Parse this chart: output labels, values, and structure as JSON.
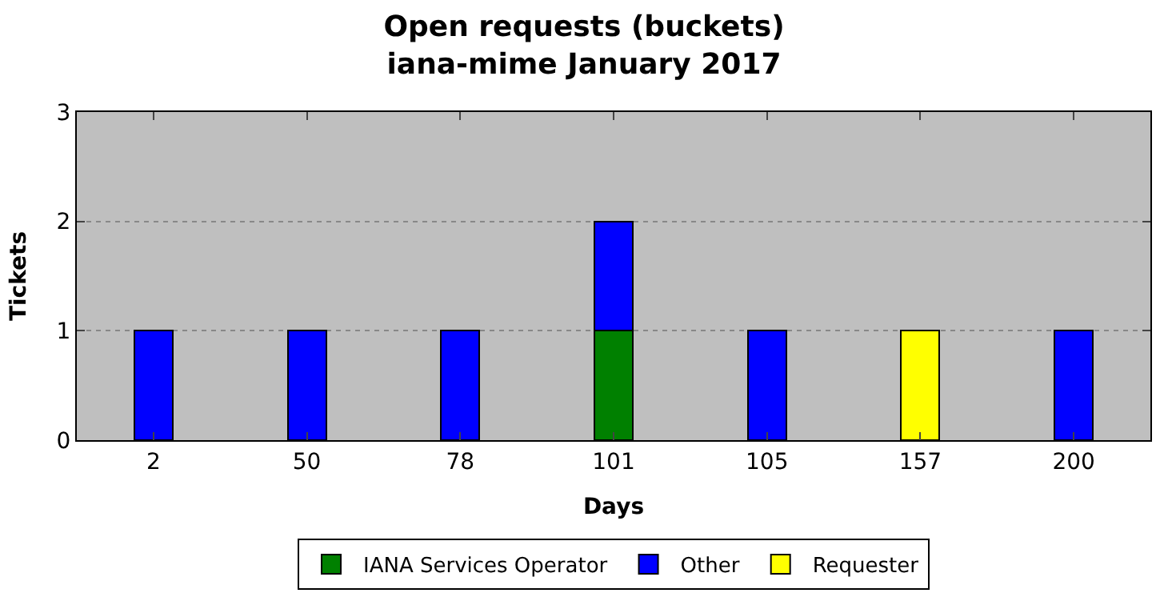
{
  "chart_data": {
    "type": "bar",
    "title": "Open requests (buckets)",
    "subtitle": "iana-mime January 2017",
    "xlabel": "Days",
    "ylabel": "Tickets",
    "stacked": true,
    "categories": [
      "2",
      "50",
      "78",
      "101",
      "105",
      "157",
      "200"
    ],
    "series": [
      {
        "name": "IANA Services Operator",
        "color": "#008000",
        "values": [
          null,
          null,
          null,
          1,
          null,
          null,
          null
        ]
      },
      {
        "name": "Other",
        "color": "#0000ff",
        "values": [
          1,
          1,
          1,
          1,
          1,
          null,
          1
        ]
      },
      {
        "name": "Requester",
        "color": "#ffff00",
        "values": [
          null,
          null,
          null,
          null,
          null,
          1,
          null
        ]
      }
    ],
    "ylim": [
      0,
      3
    ],
    "yticks": [
      0,
      1,
      2,
      3
    ],
    "grid": "y",
    "legend": "bottom"
  }
}
